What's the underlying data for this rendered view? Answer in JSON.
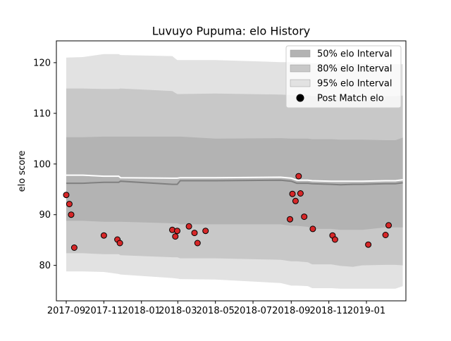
{
  "chart_data": {
    "type": "area",
    "title": "Luvuyo Pupuma: elo History",
    "xlabel": "",
    "ylabel": "elo score",
    "xlim": [
      "2017-08-16",
      "2019-03-06"
    ],
    "ylim": [
      73,
      124.3
    ],
    "x_ticks": [
      "2017-09-01",
      "2017-11-01",
      "2018-01-01",
      "2018-03-01",
      "2018-05-01",
      "2018-07-01",
      "2018-09-01",
      "2018-11-01",
      "2019-01-01"
    ],
    "x_tick_labels": [
      "2017-09",
      "2017-11",
      "2018-01",
      "2018-03",
      "2018-05",
      "2018-07",
      "2018-09",
      "2018-11",
      "2019-01"
    ],
    "y_ticks": [
      80,
      90,
      100,
      110,
      120
    ],
    "grid": false,
    "legend_position": "top-right",
    "legend": [
      {
        "label": "50% elo Interval",
        "kind": "band",
        "color": "#b3b3b3"
      },
      {
        "label": "80% elo Interval",
        "kind": "band",
        "color": "#c8c8c8"
      },
      {
        "label": "95% elo Interval",
        "kind": "band",
        "color": "#e2e2e2"
      },
      {
        "label": "Post Match elo",
        "kind": "marker",
        "color": "#000000"
      }
    ],
    "colors": {
      "band50": "#b3b3b3",
      "band80": "#c8c8c8",
      "band95": "#e2e2e2",
      "median_line": "#808080",
      "mean_line": "#ffffff",
      "points": "#d62728"
    },
    "bands": {
      "dates": [
        "2017-09-01",
        "2017-09-28",
        "2017-11-01",
        "2017-11-25",
        "2017-11-28",
        "2018-02-20",
        "2018-02-28",
        "2018-03-05",
        "2018-05-01",
        "2018-08-15",
        "2018-09-01",
        "2018-09-10",
        "2018-09-28",
        "2018-10-05",
        "2018-11-05",
        "2018-11-20",
        "2018-12-10",
        "2018-12-25",
        "2019-02-01",
        "2019-02-17",
        "2019-03-01"
      ],
      "median": [
        96.2,
        96.2,
        96.4,
        96.4,
        96.6,
        96.0,
        96.0,
        96.7,
        96.7,
        96.8,
        96.6,
        96.2,
        96.2,
        96.1,
        96.0,
        95.9,
        96.0,
        96.0,
        96.1,
        96.1,
        96.3
      ],
      "mean": [
        97.8,
        97.8,
        97.6,
        97.6,
        97.3,
        97.2,
        97.2,
        97.3,
        97.3,
        97.4,
        97.2,
        96.8,
        96.8,
        96.7,
        96.6,
        96.6,
        96.6,
        96.6,
        96.7,
        96.7,
        96.9
      ],
      "p50_low": [
        88.8,
        88.8,
        88.6,
        88.6,
        88.6,
        88.3,
        88.3,
        88.1,
        88.1,
        88.1,
        87.8,
        87.8,
        87.6,
        87.2,
        87.2,
        87.0,
        87.0,
        87.0,
        87.5,
        87.5,
        87.5
      ],
      "p50_high": [
        105.3,
        105.3,
        105.4,
        105.4,
        105.4,
        105.4,
        105.4,
        105.4,
        105.0,
        105.1,
        105.0,
        105.0,
        105.0,
        104.9,
        104.9,
        104.8,
        104.8,
        104.8,
        104.7,
        104.7,
        105.2
      ],
      "p80_low": [
        82.4,
        82.4,
        82.2,
        82.2,
        82.0,
        81.6,
        81.6,
        81.4,
        81.4,
        81.1,
        80.8,
        80.8,
        80.6,
        80.2,
        80.2,
        79.9,
        79.7,
        80.0,
        80.1,
        80.1,
        80.0
      ],
      "p80_high": [
        114.9,
        114.9,
        114.8,
        114.8,
        114.9,
        114.4,
        113.8,
        113.8,
        113.9,
        113.7,
        113.6,
        113.6,
        113.6,
        113.4,
        113.4,
        113.3,
        113.4,
        113.4,
        113.4,
        113.4,
        113.5
      ],
      "p95_low": [
        78.8,
        78.8,
        78.7,
        78.3,
        78.2,
        77.5,
        77.4,
        77.3,
        77.2,
        76.5,
        76.0,
        76.0,
        75.9,
        75.5,
        75.5,
        75.4,
        75.4,
        75.4,
        75.4,
        75.4,
        75.9
      ],
      "p95_high": [
        121.0,
        121.1,
        121.7,
        121.7,
        121.5,
        121.3,
        120.5,
        120.5,
        120.5,
        120.1,
        120.1,
        120.0,
        120.0,
        119.9,
        119.8,
        119.8,
        119.8,
        119.8,
        119.7,
        119.7,
        119.7
      ]
    },
    "points": {
      "dates": [
        "2017-09-01",
        "2017-09-06",
        "2017-09-09",
        "2017-09-14",
        "2017-11-01",
        "2017-11-23",
        "2017-11-27",
        "2018-02-20",
        "2018-02-25",
        "2018-02-28",
        "2018-03-19",
        "2018-03-28",
        "2018-04-02",
        "2018-04-15",
        "2018-08-30",
        "2018-09-03",
        "2018-09-08",
        "2018-09-13",
        "2018-09-16",
        "2018-09-22",
        "2018-10-06",
        "2018-11-07",
        "2018-11-11",
        "2019-01-04",
        "2019-02-01",
        "2019-02-06"
      ],
      "values": [
        93.9,
        92.1,
        90.0,
        83.5,
        85.9,
        85.1,
        84.4,
        87.0,
        85.7,
        86.8,
        87.7,
        86.4,
        84.4,
        86.8,
        89.1,
        94.1,
        92.7,
        97.6,
        94.2,
        89.6,
        87.2,
        85.9,
        85.1,
        84.1,
        86.0,
        87.9
      ]
    }
  }
}
